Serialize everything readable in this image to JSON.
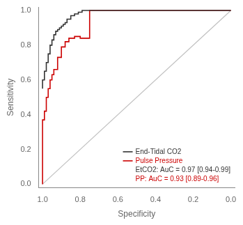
{
  "chart_data": {
    "type": "line",
    "xlabel": "Specificity",
    "ylabel": "Sensitivity",
    "series": [
      {
        "color": "#c0c0c0",
        "x": [
          1.0,
          0.0
        ],
        "values": [
          0.0,
          1.0
        ]
      },
      {
        "name": "End-Tidal CO2",
        "color": "#333333",
        "x": [
          1,
          1,
          0.99,
          0.99,
          0.98,
          0.98,
          0.97,
          0.97,
          0.96,
          0.96,
          0.95,
          0.95,
          0.94,
          0.94,
          0.93,
          0.93,
          0.92,
          0.92,
          0.91,
          0.91,
          0.9,
          0.9,
          0.89,
          0.89,
          0.88,
          0.88,
          0.87,
          0.87,
          0.85,
          0.85,
          0.83,
          0.83,
          0.81,
          0.81,
          0.79,
          0.79,
          0.75,
          0.75,
          0.7,
          0.7,
          0.62,
          0.62,
          0
        ],
        "values": [
          0.55,
          0.6,
          0.6,
          0.65,
          0.65,
          0.7,
          0.7,
          0.75,
          0.75,
          0.8,
          0.8,
          0.83,
          0.83,
          0.86,
          0.86,
          0.88,
          0.88,
          0.89,
          0.89,
          0.9,
          0.9,
          0.91,
          0.91,
          0.92,
          0.92,
          0.93,
          0.93,
          0.95,
          0.95,
          0.97,
          0.97,
          0.98,
          0.98,
          0.99,
          0.99,
          1.0,
          1.0,
          1.0,
          1.0,
          1.0,
          1.0,
          1.0,
          1.0
        ]
      },
      {
        "name": "Pulse Pressure",
        "color": "#cc0000",
        "x": [
          1,
          1,
          0.99,
          0.99,
          0.98,
          0.98,
          0.97,
          0.97,
          0.96,
          0.96,
          0.95,
          0.95,
          0.94,
          0.94,
          0.92,
          0.92,
          0.9,
          0.9,
          0.88,
          0.88,
          0.86,
          0.86,
          0.83,
          0.83,
          0.8,
          0.8,
          0.75,
          0.75,
          0.62,
          0.62,
          0
        ],
        "values": [
          0.0,
          0.37,
          0.37,
          0.42,
          0.42,
          0.5,
          0.5,
          0.55,
          0.55,
          0.6,
          0.6,
          0.63,
          0.63,
          0.66,
          0.66,
          0.73,
          0.73,
          0.79,
          0.79,
          0.82,
          0.82,
          0.84,
          0.84,
          0.85,
          0.85,
          0.84,
          0.84,
          1.0,
          1.0,
          1.0,
          1.0
        ]
      }
    ],
    "annotations": [
      {
        "text": "EtCO2: AuC = 0.97 [0.94-0.99]",
        "color": "#333333"
      },
      {
        "text": "PP: AuC = 0.93 [0.89-0.96]",
        "color": "#cc0000"
      }
    ],
    "xlim": [
      1.02,
      -0.02
    ],
    "ylim": [
      -0.02,
      1.02
    ],
    "xticks": [
      {
        "value": 1.0,
        "label": "1.0"
      },
      0.8,
      0.6,
      0.4,
      0.2,
      {
        "value": 0.0,
        "label": "0.0"
      }
    ],
    "yticks": [
      {
        "value": 0.0,
        "label": "0.0"
      },
      0.2,
      0.4,
      0.6,
      0.8,
      {
        "value": 1.0,
        "label": "1.0"
      }
    ],
    "grid": false,
    "legend": "lower right"
  }
}
